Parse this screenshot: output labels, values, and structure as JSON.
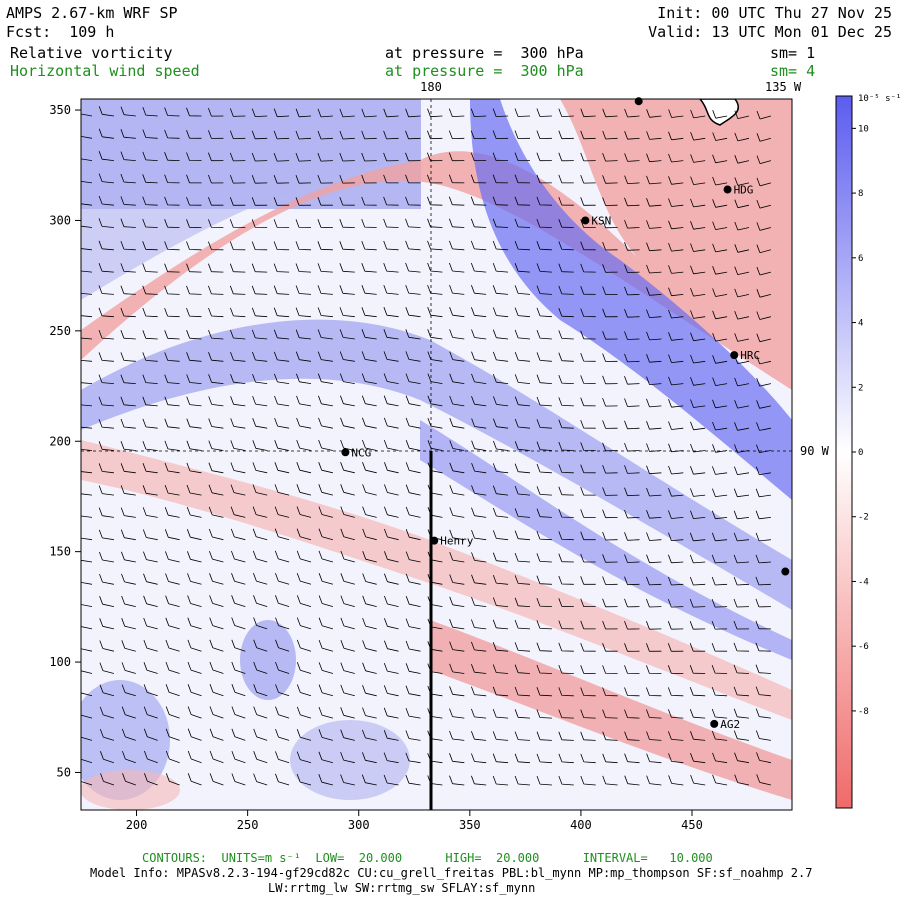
{
  "header": {
    "model": "AMPS 2.67-km WRF SP",
    "forecast": "Fcst:  109 h",
    "init": "Init: 00 UTC Thu 27 Nov 25",
    "valid": "Valid: 13 UTC Mon 01 Dec 25",
    "field1_name": "Relative vorticity",
    "field1_level": "at pressure =  300 hPa",
    "field1_sm": "sm= 1",
    "field2_name": "Horizontal wind speed",
    "field2_level": "at pressure =  300 hPa",
    "field2_sm": "sm= 4"
  },
  "map": {
    "meridian_labels": [
      "180",
      "135 W",
      "90 W"
    ],
    "x_ticks": [
      "200",
      "250",
      "300",
      "350",
      "400",
      "450"
    ],
    "y_ticks": [
      "350",
      "300",
      "250",
      "200",
      "150",
      "100",
      "50"
    ],
    "stations": [
      {
        "name": "KSN",
        "i": 402,
        "j": 300
      },
      {
        "name": "HDG",
        "i": 466,
        "j": 314
      },
      {
        "name": "HRC",
        "i": 469,
        "j": 239
      },
      {
        "name": "NCG",
        "i": 294,
        "j": 195
      },
      {
        "name": "Henry",
        "i": 334,
        "j": 155
      },
      {
        "name": "AG2",
        "i": 460,
        "j": 72
      },
      {
        "name": "",
        "i": 426,
        "j": 354
      },
      {
        "name": "",
        "i": 492,
        "j": 141
      }
    ],
    "i_range": [
      175,
      495
    ],
    "j_range": [
      33,
      355
    ]
  },
  "colorbar": {
    "units_label": "10⁻⁵ s⁻¹",
    "ticks": [
      "10",
      "8",
      "6",
      "4",
      "2",
      "0",
      "-2",
      "-4",
      "-6",
      "-8"
    ],
    "colors": {
      "max": "#5c5cf0",
      "mid": "#ffffff",
      "min": "#f06a6a"
    }
  },
  "footer": {
    "contours": "CONTOURS:  UNITS=m s⁻¹  LOW=  20.000      HIGH=  20.000      INTERVAL=   10.000",
    "model_info": "Model Info: MPASv8.2.3-194-gf29cd82c CU:cu_grell_freitas PBL:bl_mynn MP:mp_thompson SF:sf_noahmp 2.7",
    "model_info2": "LW:rrtmg_lw SW:rrtmg_sw SFLAY:sf_mynn"
  }
}
